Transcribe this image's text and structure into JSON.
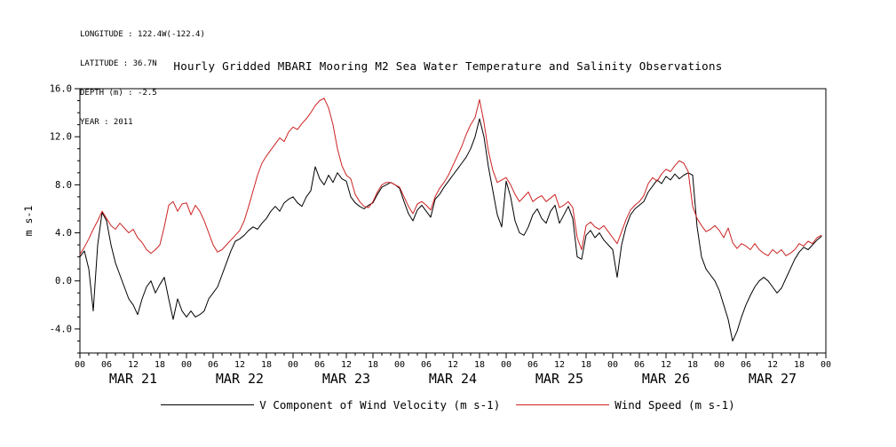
{
  "header": {
    "metadata_lines": [
      "LONGITUDE : 122.4W(-122.4)",
      "LATITUDE : 36.7N",
      "DEPTH (m) : -2.5",
      "YEAR : 2011"
    ],
    "title": "Hourly Gridded MBARI Mooring M2 Sea Water Temperature and Salinity Observations"
  },
  "chart_data": {
    "type": "line",
    "title": "Hourly Gridded MBARI Mooring M2 Sea Water Temperature and Salinity Observations",
    "xlabel": "",
    "ylabel": "m s-1",
    "ylim": [
      -6,
      16
    ],
    "ytick_values": [
      -4,
      0,
      4,
      8,
      12,
      16
    ],
    "ytick_labels": [
      "-4.0",
      "0.0",
      "4.0",
      "8.0",
      "12.0",
      "16.0"
    ],
    "hours_total": 168,
    "x_step_hours": 1,
    "xtick_interval_hours": 6,
    "xtick_labels": [
      "00",
      "06",
      "12",
      "18",
      "00",
      "06",
      "12",
      "18",
      "00",
      "06",
      "12",
      "18",
      "00",
      "06",
      "12",
      "18",
      "00",
      "06",
      "12",
      "18",
      "00",
      "06",
      "12",
      "18",
      "00",
      "06",
      "12",
      "18",
      "00"
    ],
    "day_labels": [
      "MAR 21",
      "MAR 22",
      "MAR 23",
      "MAR 24",
      "MAR 25",
      "MAR 26",
      "MAR 27"
    ],
    "grid": false,
    "legend_position": "bottom",
    "series": [
      {
        "name": "V Component of Wind Velocity (m s-1)",
        "color": "#000000",
        "values": [
          2.0,
          2.5,
          1.0,
          -2.5,
          3.0,
          5.7,
          5.0,
          3.0,
          1.5,
          0.5,
          -0.5,
          -1.5,
          -2.0,
          -2.8,
          -1.5,
          -0.5,
          0.0,
          -1.0,
          -0.3,
          0.3,
          -1.5,
          -3.2,
          -1.5,
          -2.5,
          -3.0,
          -2.5,
          -3.0,
          -2.8,
          -2.5,
          -1.5,
          -1.0,
          -0.5,
          0.5,
          1.5,
          2.5,
          3.3,
          3.5,
          3.8,
          4.2,
          4.5,
          4.3,
          4.8,
          5.2,
          5.8,
          6.2,
          5.8,
          6.5,
          6.8,
          7.0,
          6.5,
          6.2,
          7.0,
          7.5,
          9.5,
          8.5,
          8.0,
          8.8,
          8.2,
          9.0,
          8.5,
          8.3,
          7.0,
          6.5,
          6.2,
          6.0,
          6.3,
          6.5,
          7.2,
          7.8,
          8.0,
          8.2,
          8.0,
          7.7,
          6.6,
          5.6,
          5.0,
          5.9,
          6.3,
          5.8,
          5.3,
          6.8,
          7.2,
          7.8,
          8.3,
          8.8,
          9.3,
          9.8,
          10.3,
          11.0,
          12.0,
          13.5,
          12.0,
          9.5,
          7.5,
          5.5,
          4.5,
          8.3,
          7.0,
          5.0,
          4.0,
          3.8,
          4.5,
          5.5,
          6.0,
          5.2,
          4.8,
          5.8,
          6.3,
          4.8,
          5.5,
          6.2,
          5.2,
          2.0,
          1.8,
          3.8,
          4.2,
          3.6,
          4.0,
          3.4,
          3.0,
          2.6,
          0.3,
          3.0,
          4.5,
          5.5,
          6.0,
          6.3,
          6.6,
          7.4,
          7.9,
          8.4,
          8.1,
          8.7,
          8.4,
          8.9,
          8.5,
          8.8,
          9.0,
          8.8,
          4.5,
          2.0,
          1.0,
          0.5,
          0.0,
          -0.8,
          -2.0,
          -3.2,
          -5.0,
          -4.2,
          -3.0,
          -2.0,
          -1.2,
          -0.5,
          0.0,
          0.3,
          0.0,
          -0.5,
          -1.0,
          -0.6,
          0.2,
          1.0,
          1.8,
          2.4,
          2.8,
          2.6,
          3.0,
          3.4,
          3.7
        ]
      },
      {
        "name": "Wind Speed (m s-1)",
        "color": "#cc2222",
        "values": [
          2.2,
          2.8,
          3.5,
          4.3,
          5.0,
          5.8,
          5.2,
          4.6,
          4.3,
          4.8,
          4.4,
          4.0,
          4.3,
          3.6,
          3.2,
          2.6,
          2.3,
          2.6,
          3.0,
          4.5,
          6.3,
          6.6,
          5.8,
          6.4,
          6.5,
          5.5,
          6.3,
          5.8,
          5.0,
          4.0,
          3.0,
          2.4,
          2.6,
          3.0,
          3.4,
          3.8,
          4.2,
          5.0,
          6.2,
          7.5,
          8.8,
          9.8,
          10.4,
          10.9,
          11.4,
          11.9,
          11.6,
          12.4,
          12.8,
          12.6,
          13.1,
          13.5,
          14.0,
          14.6,
          15.0,
          15.2,
          14.4,
          13.0,
          11.0,
          9.6,
          8.8,
          8.5,
          7.2,
          6.6,
          6.2,
          6.1,
          6.6,
          7.4,
          8.0,
          8.2,
          8.2,
          8.0,
          7.8,
          7.0,
          6.2,
          5.6,
          6.4,
          6.6,
          6.3,
          5.9,
          7.0,
          7.7,
          8.2,
          8.8,
          9.6,
          10.4,
          11.2,
          12.2,
          13.0,
          13.6,
          15.1,
          13.2,
          10.8,
          9.2,
          8.2,
          8.4,
          8.6,
          8.0,
          7.2,
          6.6,
          7.0,
          7.4,
          6.6,
          6.9,
          7.1,
          6.6,
          6.9,
          7.2,
          6.1,
          6.3,
          6.6,
          6.1,
          3.6,
          2.6,
          4.6,
          4.9,
          4.5,
          4.3,
          4.6,
          4.1,
          3.6,
          3.1,
          4.1,
          5.1,
          5.9,
          6.3,
          6.6,
          7.1,
          8.1,
          8.6,
          8.3,
          8.9,
          9.3,
          9.1,
          9.6,
          10.0,
          9.8,
          9.1,
          6.2,
          5.2,
          4.6,
          4.1,
          4.3,
          4.6,
          4.2,
          3.6,
          4.4,
          3.2,
          2.7,
          3.1,
          2.9,
          2.6,
          3.1,
          2.6,
          2.3,
          2.1,
          2.6,
          2.3,
          2.6,
          2.1,
          2.3,
          2.6,
          3.1,
          2.9,
          3.3,
          3.1,
          3.6,
          3.8
        ]
      }
    ]
  }
}
